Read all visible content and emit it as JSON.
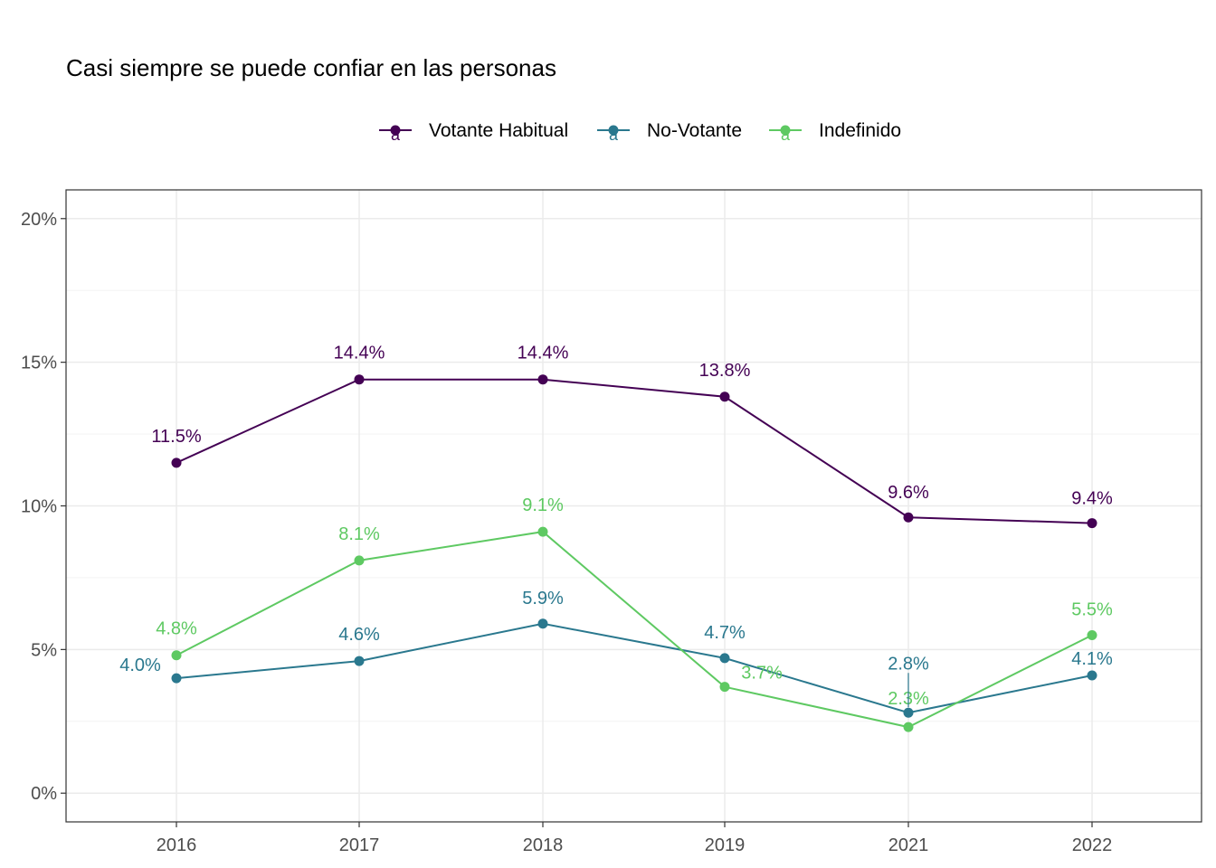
{
  "chart_data": {
    "type": "line",
    "title": "Casi siempre se puede confiar en las personas",
    "xlabel": "",
    "ylabel": "",
    "categories": [
      "2016",
      "2017",
      "2018",
      "2019",
      "2021",
      "2022"
    ],
    "y_ticks": [
      0,
      5,
      10,
      15,
      20
    ],
    "y_tick_labels": [
      "0%",
      "5%",
      "10%",
      "15%",
      "20%"
    ],
    "ylim": [
      -1,
      21
    ],
    "grid": true,
    "legend_position": "top",
    "legend_key_glyph": "a",
    "series": [
      {
        "name": "Votante Habitual",
        "color": "#440154",
        "values": [
          11.5,
          14.4,
          14.4,
          13.8,
          9.6,
          9.4
        ],
        "labels": [
          "11.5%",
          "14.4%",
          "14.4%",
          "13.8%",
          "9.6%",
          "9.4%"
        ]
      },
      {
        "name": "No-Votante",
        "color": "#2a788e",
        "values": [
          4.0,
          4.6,
          5.9,
          4.7,
          2.8,
          4.1
        ],
        "labels": [
          "4.0%",
          "4.6%",
          "5.9%",
          "4.7%",
          "2.8%",
          "4.1%"
        ]
      },
      {
        "name": "Indefinido",
        "color": "#5ec962",
        "values": [
          4.8,
          8.1,
          9.1,
          3.7,
          2.3,
          5.5
        ],
        "labels": [
          "4.8%",
          "8.1%",
          "9.1%",
          "3.7%",
          "2.3%",
          "5.5%"
        ]
      }
    ]
  }
}
